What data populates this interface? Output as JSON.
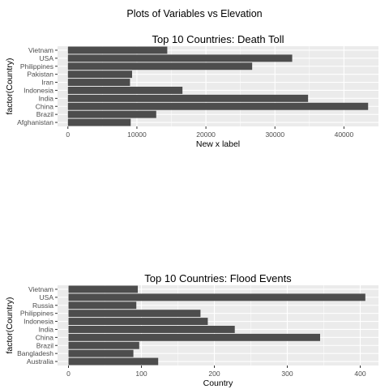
{
  "figure": {
    "suptitle": "Plots of Variables vs Elevation"
  },
  "colors": {
    "panel_background": "#ebebeb",
    "grid_major": "#ffffff",
    "bar_fill": "#4d4d4d",
    "axis_text": "#4d4d4d",
    "title_text": "#000000"
  },
  "chart_data": [
    {
      "type": "bar",
      "orientation": "horizontal",
      "title": "Top 10 Countries: Death Toll",
      "xlabel": "New x label",
      "ylabel": "factor(Country)",
      "categories": [
        "Afghanistan",
        "Brazil",
        "China",
        "India",
        "Indonesia",
        "Iran",
        "Pakistan",
        "Philippines",
        "USA",
        "Vietnam"
      ],
      "values": [
        9100,
        12800,
        43500,
        34800,
        16600,
        9000,
        9300,
        26700,
        32500,
        14400
      ],
      "xlim": [
        -1500,
        45000
      ],
      "xticks": [
        0,
        10000,
        20000,
        30000,
        40000
      ],
      "xtick_labels": [
        "0",
        "10000",
        "20000",
        "30000",
        "40000"
      ],
      "grid": true
    },
    {
      "type": "bar",
      "orientation": "horizontal",
      "title": "Top 10 Countries: Flood Events",
      "xlabel": "Country",
      "ylabel": "factor(Country)",
      "categories": [
        "Australia",
        "Bangladesh",
        "Brazil",
        "China",
        "India",
        "Indonesia",
        "Philippines",
        "Russia",
        "USA",
        "Vietnam"
      ],
      "values": [
        123,
        89,
        97,
        345,
        228,
        191,
        181,
        93,
        407,
        95
      ],
      "xlim": [
        -15,
        425
      ],
      "xticks": [
        0,
        100,
        200,
        300,
        400
      ],
      "xtick_labels": [
        "0",
        "100",
        "200",
        "300",
        "400"
      ],
      "grid": true
    }
  ]
}
